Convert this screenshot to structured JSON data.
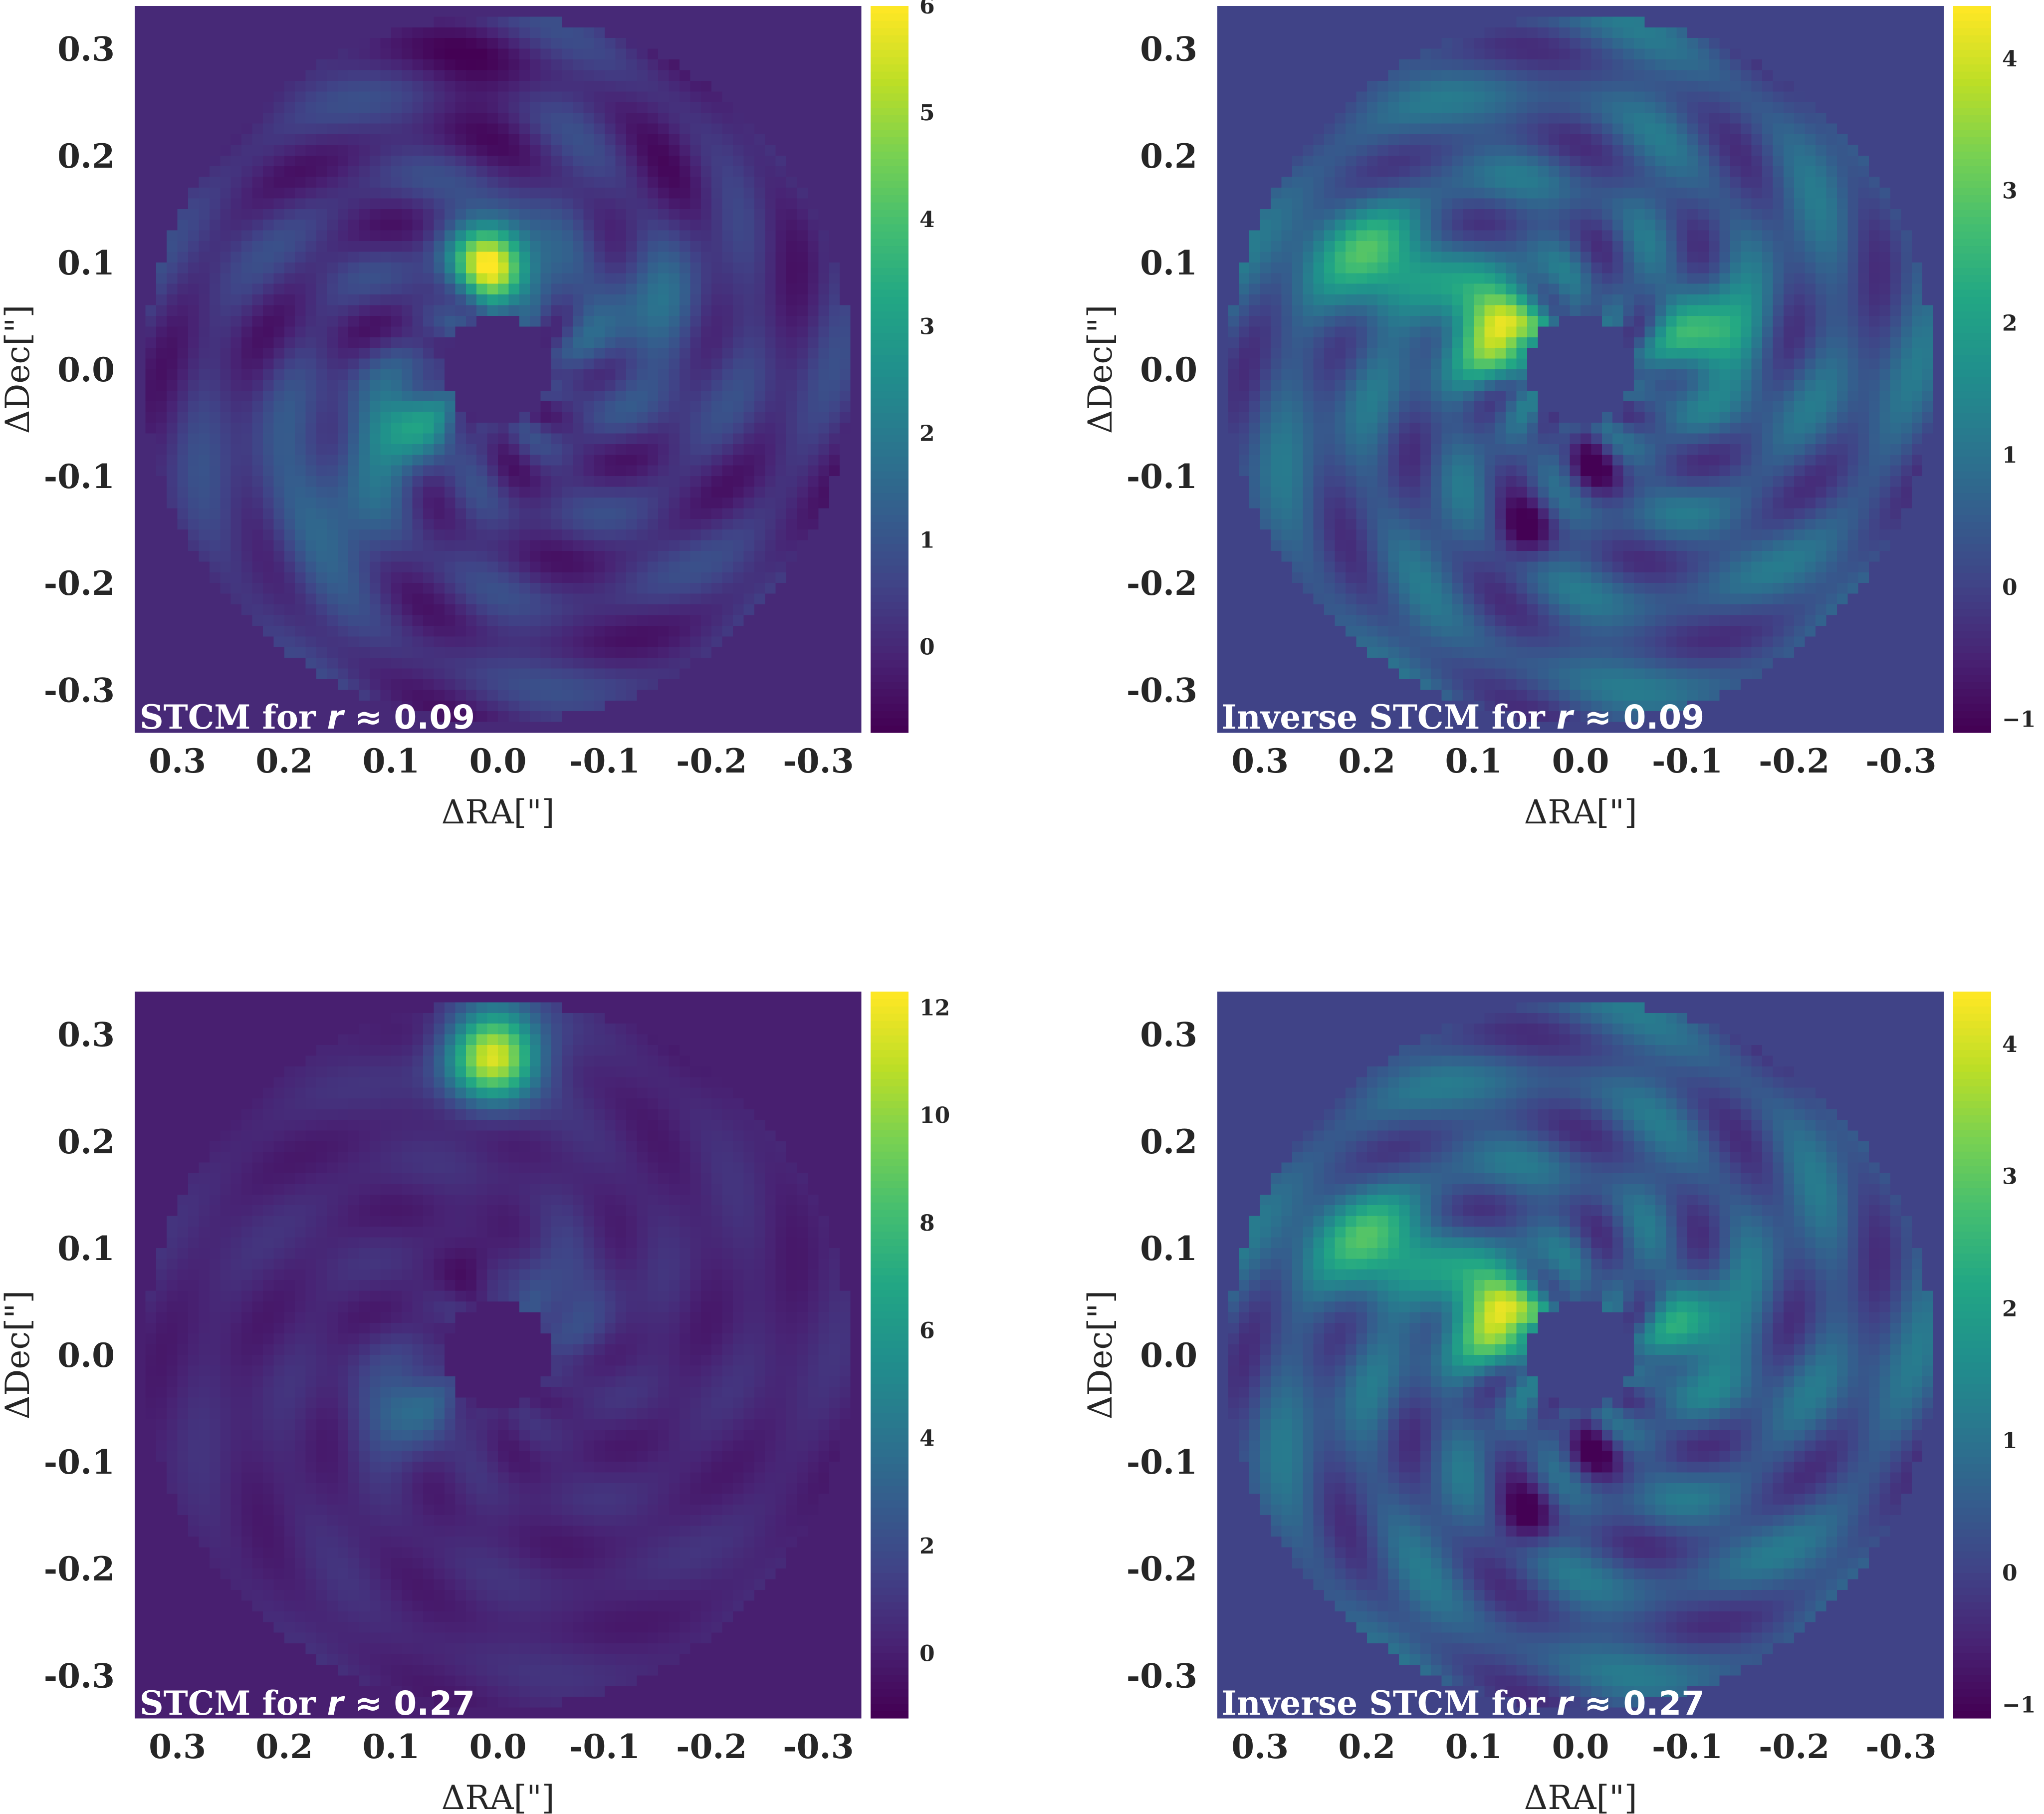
{
  "chart_data": [
    {
      "type": "heatmap",
      "title": {
        "text": "STCM for ",
        "var": "r",
        "rel": "≈",
        "value": "0.09"
      },
      "xlabel": "ΔRA[\"]",
      "ylabel": "ΔDec[\"]",
      "xlim": [
        0.34,
        -0.34
      ],
      "ylim": [
        -0.34,
        0.34
      ],
      "xticks": [
        "0.3",
        "0.2",
        "0.1",
        "0.0",
        "-0.1",
        "-0.2",
        "-0.3"
      ],
      "yticks": [
        "0.3",
        "0.2",
        "0.1",
        "0.0",
        "-0.1",
        "-0.2",
        "-0.3"
      ],
      "colorbar": {
        "min": -0.8,
        "max": 6.0,
        "ticks": [
          "0",
          "1",
          "2",
          "3",
          "4",
          "5",
          "6"
        ],
        "colormap": "viridis"
      },
      "background": 0.2,
      "features": [
        {
          "x": 0.005,
          "y": 0.1,
          "sigma": 0.028,
          "value": 5.8
        },
        {
          "x": 0.085,
          "y": -0.05,
          "sigma": 0.028,
          "value": 3.2
        },
        {
          "x": 0.16,
          "y": -0.12,
          "sigma": 0.05,
          "value": 1.5
        },
        {
          "x": -0.13,
          "y": 0.05,
          "sigma": 0.05,
          "value": 1.4
        },
        {
          "x": 0.02,
          "y": 0.27,
          "sigma": 0.04,
          "value": -0.3
        },
        {
          "x": -0.19,
          "y": 0.17,
          "sigma": 0.04,
          "value": -0.2
        }
      ],
      "ring_amplitude": 0.7,
      "mask_inner": 0.05,
      "mask_outer": 0.33
    },
    {
      "type": "heatmap",
      "title": {
        "text": "Inverse STCM for ",
        "var": "r",
        "rel": "≈",
        "value": "0.09"
      },
      "xlabel": "ΔRA[\"]",
      "ylabel": "ΔDec[\"]",
      "xlim": [
        0.34,
        -0.34
      ],
      "ylim": [
        -0.34,
        0.34
      ],
      "xticks": [
        "0.3",
        "0.2",
        "0.1",
        "0.0",
        "-0.1",
        "-0.2",
        "-0.3"
      ],
      "yticks": [
        "0.3",
        "0.2",
        "0.1",
        "0.0",
        "-0.1",
        "-0.2",
        "-0.3"
      ],
      "colorbar": {
        "min": -1.1,
        "max": 4.4,
        "ticks": [
          "4",
          "3",
          "2",
          "1",
          "0",
          "−1"
        ],
        "colormap": "viridis"
      },
      "background": 0.4,
      "features": [
        {
          "x": 0.08,
          "y": 0.04,
          "sigma": 0.03,
          "value": 4.3
        },
        {
          "x": -0.12,
          "y": 0.03,
          "sigma": 0.03,
          "value": 2.8
        },
        {
          "x": 0.19,
          "y": 0.1,
          "sigma": 0.04,
          "value": 2.4
        },
        {
          "x": 0.05,
          "y": -0.15,
          "sigma": 0.02,
          "value": -0.9
        },
        {
          "x": -0.01,
          "y": -0.09,
          "sigma": 0.02,
          "value": -0.7
        }
      ],
      "ring_amplitude": 0.8,
      "mask_inner": 0.05,
      "mask_outer": 0.33
    },
    {
      "type": "heatmap",
      "title": {
        "text": "STCM for ",
        "var": "r",
        "rel": "≈",
        "value": "0.27"
      },
      "xlabel": "ΔRA[\"]",
      "ylabel": "ΔDec[\"]",
      "xlim": [
        0.34,
        -0.34
      ],
      "ylim": [
        -0.34,
        0.34
      ],
      "xticks": [
        "0.3",
        "0.2",
        "0.1",
        "0.0",
        "-0.1",
        "-0.2",
        "-0.3"
      ],
      "yticks": [
        "0.3",
        "0.2",
        "0.1",
        "0.0",
        "-0.1",
        "-0.2",
        "-0.3"
      ],
      "colorbar": {
        "min": -1.2,
        "max": 12.3,
        "ticks": [
          "12",
          "10",
          "8",
          "6",
          "4",
          "2",
          "0"
        ],
        "colormap": "viridis"
      },
      "background": 0.3,
      "features": [
        {
          "x": 0.005,
          "y": 0.28,
          "sigma": 0.03,
          "value": 12.0
        },
        {
          "x": 0.085,
          "y": -0.05,
          "sigma": 0.03,
          "value": 3.8
        },
        {
          "x": -0.05,
          "y": 0.05,
          "sigma": 0.04,
          "value": 2.2
        },
        {
          "x": 0.02,
          "y": 0.09,
          "sigma": 0.02,
          "value": -1.0
        }
      ],
      "ring_amplitude": 0.6,
      "mask_inner": 0.05,
      "mask_outer": 0.33
    },
    {
      "type": "heatmap",
      "title": {
        "text": "Inverse STCM for ",
        "var": "r",
        "rel": "≈",
        "value": "0.27"
      },
      "xlabel": "ΔRA[\"]",
      "ylabel": "ΔDec[\"]",
      "xlim": [
        0.34,
        -0.34
      ],
      "ylim": [
        -0.34,
        0.34
      ],
      "xticks": [
        "0.3",
        "0.2",
        "0.1",
        "0.0",
        "-0.1",
        "-0.2",
        "-0.3"
      ],
      "yticks": [
        "0.3",
        "0.2",
        "0.1",
        "0.0",
        "-0.1",
        "-0.2",
        "-0.3"
      ],
      "colorbar": {
        "min": -1.1,
        "max": 4.4,
        "ticks": [
          "4",
          "3",
          "2",
          "1",
          "0",
          "−1"
        ],
        "colormap": "viridis"
      },
      "background": 0.4,
      "features": [
        {
          "x": 0.08,
          "y": 0.04,
          "sigma": 0.03,
          "value": 4.3
        },
        {
          "x": -0.11,
          "y": 0.02,
          "sigma": 0.03,
          "value": 2.2
        },
        {
          "x": 0.19,
          "y": 0.1,
          "sigma": 0.04,
          "value": 2.4
        },
        {
          "x": 0.05,
          "y": -0.15,
          "sigma": 0.02,
          "value": -0.9
        },
        {
          "x": -0.01,
          "y": -0.09,
          "sigma": 0.02,
          "value": -0.7
        }
      ],
      "ring_amplitude": 0.8,
      "mask_inner": 0.05,
      "mask_outer": 0.33
    }
  ]
}
